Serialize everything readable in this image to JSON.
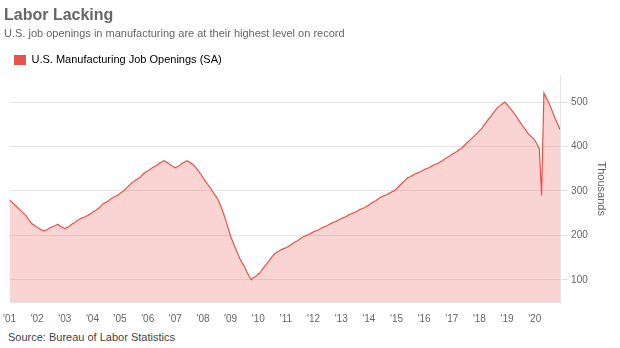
{
  "chart_data": {
    "type": "area",
    "title": "Labor Lacking",
    "subtitle": "U.S. job openings in manufacturing are at their highest level on record",
    "source": "Source: Bureau of Labor Statistics",
    "ylabel": "Thousands",
    "xlim": [
      2001,
      2020.92
    ],
    "ylim": [
      50,
      560
    ],
    "yticks": [
      100,
      200,
      300,
      400,
      500
    ],
    "xticks": [
      {
        "value": 2001,
        "label": "'01"
      },
      {
        "value": 2002,
        "label": "'02"
      },
      {
        "value": 2003,
        "label": "'03"
      },
      {
        "value": 2004,
        "label": "'04"
      },
      {
        "value": 2005,
        "label": "'05"
      },
      {
        "value": 2006,
        "label": "'06"
      },
      {
        "value": 2007,
        "label": "'07"
      },
      {
        "value": 2008,
        "label": "'08"
      },
      {
        "value": 2009,
        "label": "'09"
      },
      {
        "value": 2010,
        "label": "'10"
      },
      {
        "value": 2011,
        "label": "'11"
      },
      {
        "value": 2012,
        "label": "'12"
      },
      {
        "value": 2013,
        "label": "'13"
      },
      {
        "value": 2014,
        "label": "'14"
      },
      {
        "value": 2015,
        "label": "'15"
      },
      {
        "value": 2016,
        "label": "'16"
      },
      {
        "value": 2017,
        "label": "'17"
      },
      {
        "value": 2018,
        "label": "'18"
      },
      {
        "value": 2019,
        "label": "'19"
      },
      {
        "value": 2020,
        "label": "'20"
      }
    ],
    "grid": true,
    "legend": "top",
    "x": [
      2001,
      2001.083333,
      2001.166667,
      2001.25,
      2001.333333,
      2001.416667,
      2001.5,
      2001.583333,
      2001.666667,
      2001.75,
      2001.833333,
      2001.916667,
      2002,
      2002.083333,
      2002.166667,
      2002.25,
      2002.333333,
      2002.416667,
      2002.5,
      2002.583333,
      2002.666667,
      2002.75,
      2002.833333,
      2002.916667,
      2003,
      2003.083333,
      2003.166667,
      2003.25,
      2003.333333,
      2003.416667,
      2003.5,
      2003.583333,
      2003.666667,
      2003.75,
      2003.833333,
      2003.916667,
      2004,
      2004.083333,
      2004.166667,
      2004.25,
      2004.333333,
      2004.416667,
      2004.5,
      2004.583333,
      2004.666667,
      2004.75,
      2004.833333,
      2004.916667,
      2005,
      2005.083333,
      2005.166667,
      2005.25,
      2005.333333,
      2005.416667,
      2005.5,
      2005.583333,
      2005.666667,
      2005.75,
      2005.833333,
      2005.916667,
      2006,
      2006.083333,
      2006.166667,
      2006.25,
      2006.333333,
      2006.416667,
      2006.5,
      2006.583333,
      2006.666667,
      2006.75,
      2006.833333,
      2006.916667,
      2007,
      2007.083333,
      2007.166667,
      2007.25,
      2007.333333,
      2007.416667,
      2007.5,
      2007.583333,
      2007.666667,
      2007.75,
      2007.833333,
      2007.916667,
      2008,
      2008.083333,
      2008.166667,
      2008.25,
      2008.333333,
      2008.416667,
      2008.5,
      2008.583333,
      2008.666667,
      2008.75,
      2008.833333,
      2008.916667,
      2009,
      2009.083333,
      2009.166667,
      2009.25,
      2009.333333,
      2009.416667,
      2009.5,
      2009.583333,
      2009.666667,
      2009.75,
      2009.833333,
      2009.916667,
      2010,
      2010.083333,
      2010.166667,
      2010.25,
      2010.333333,
      2010.416667,
      2010.5,
      2010.583333,
      2010.666667,
      2010.75,
      2010.833333,
      2010.916667,
      2011,
      2011.083333,
      2011.166667,
      2011.25,
      2011.333333,
      2011.416667,
      2011.5,
      2011.583333,
      2011.666667,
      2011.75,
      2011.833333,
      2011.916667,
      2012,
      2012.083333,
      2012.166667,
      2012.25,
      2012.333333,
      2012.416667,
      2012.5,
      2012.583333,
      2012.666667,
      2012.75,
      2012.833333,
      2012.916667,
      2013,
      2013.083333,
      2013.166667,
      2013.25,
      2013.333333,
      2013.416667,
      2013.5,
      2013.583333,
      2013.666667,
      2013.75,
      2013.833333,
      2013.916667,
      2014,
      2014.083333,
      2014.166667,
      2014.25,
      2014.333333,
      2014.416667,
      2014.5,
      2014.583333,
      2014.666667,
      2014.75,
      2014.833333,
      2014.916667,
      2015,
      2015.083333,
      2015.166667,
      2015.25,
      2015.333333,
      2015.416667,
      2015.5,
      2015.583333,
      2015.666667,
      2015.75,
      2015.833333,
      2015.916667,
      2016,
      2016.083333,
      2016.166667,
      2016.25,
      2016.333333,
      2016.416667,
      2016.5,
      2016.583333,
      2016.666667,
      2016.75,
      2016.833333,
      2016.916667,
      2017,
      2017.083333,
      2017.166667,
      2017.25,
      2017.333333,
      2017.416667,
      2017.5,
      2017.583333,
      2017.666667,
      2017.75,
      2017.833333,
      2017.916667,
      2018,
      2018.083333,
      2018.166667,
      2018.25,
      2018.333333,
      2018.416667,
      2018.5,
      2018.583333,
      2018.666667,
      2018.75,
      2018.833333,
      2018.916667,
      2019,
      2019.083333,
      2019.166667,
      2019.25,
      2019.333333,
      2019.416667,
      2019.5,
      2019.583333,
      2019.666667,
      2019.75,
      2019.833333,
      2019.916667,
      2020,
      2020.083333,
      2020.166667,
      2020.25,
      2020.333333,
      2020.416667,
      2020.5,
      2020.583333,
      2020.666667,
      2020.75,
      2020.833333,
      2020.916667
    ],
    "series": [
      {
        "name": "U.S. Manufacturing Job Openings (SA)",
        "color": "#e8534a",
        "values": [
          280,
          275,
          270,
          265,
          260,
          255,
          250,
          245,
          238,
          230,
          225,
          222,
          218,
          215,
          212,
          210,
          212,
          215,
          218,
          220,
          222,
          225,
          220,
          218,
          215,
          218,
          220,
          225,
          228,
          232,
          235,
          238,
          240,
          242,
          245,
          248,
          252,
          255,
          258,
          262,
          268,
          272,
          275,
          278,
          282,
          285,
          288,
          290,
          295,
          298,
          302,
          308,
          312,
          318,
          322,
          325,
          328,
          332,
          338,
          342,
          345,
          348,
          352,
          355,
          358,
          362,
          365,
          368,
          365,
          362,
          358,
          355,
          352,
          355,
          358,
          362,
          365,
          368,
          365,
          362,
          358,
          352,
          345,
          338,
          330,
          322,
          315,
          308,
          300,
          292,
          285,
          275,
          262,
          248,
          232,
          215,
          198,
          185,
          172,
          160,
          148,
          138,
          130,
          118,
          108,
          100,
          105,
          108,
          112,
          118,
          125,
          132,
          138,
          145,
          152,
          158,
          162,
          165,
          168,
          170,
          172,
          175,
          178,
          182,
          185,
          188,
          192,
          195,
          198,
          200,
          202,
          205,
          208,
          210,
          212,
          215,
          218,
          220,
          222,
          225,
          228,
          230,
          232,
          235,
          238,
          240,
          242,
          245,
          248,
          250,
          252,
          255,
          258,
          260,
          262,
          265,
          268,
          272,
          275,
          278,
          282,
          285,
          288,
          290,
          292,
          295,
          298,
          300,
          305,
          310,
          315,
          320,
          325,
          330,
          332,
          335,
          338,
          340,
          342,
          345,
          348,
          350,
          352,
          355,
          358,
          360,
          362,
          365,
          368,
          372,
          375,
          378,
          382,
          385,
          388,
          392,
          395,
          400,
          405,
          410,
          415,
          420,
          425,
          430,
          435,
          440,
          448,
          455,
          462,
          468,
          475,
          482,
          488,
          492,
          496,
          500,
          495,
          488,
          482,
          475,
          468,
          460,
          452,
          445,
          438,
          430,
          425,
          420,
          415,
          405,
          395,
          290,
          520,
          510,
          500,
          488,
          475,
          462,
          450,
          438
        ]
      }
    ]
  }
}
